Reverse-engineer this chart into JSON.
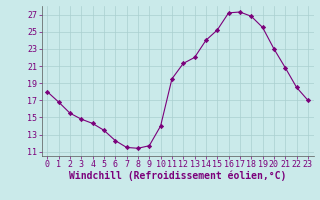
{
  "x": [
    0,
    1,
    2,
    3,
    4,
    5,
    6,
    7,
    8,
    9,
    10,
    11,
    12,
    13,
    14,
    15,
    16,
    17,
    18,
    19,
    20,
    21,
    22,
    23
  ],
  "y": [
    18.0,
    16.8,
    15.5,
    14.8,
    14.3,
    13.5,
    12.3,
    11.5,
    11.4,
    11.7,
    14.0,
    19.5,
    21.3,
    22.0,
    24.0,
    25.2,
    27.2,
    27.3,
    26.8,
    25.5,
    23.0,
    20.8,
    18.5,
    17.0
  ],
  "line_color": "#7b007b",
  "marker": "D",
  "marker_size": 2.2,
  "bg_color": "#caeaea",
  "grid_color": "#aacfcf",
  "xlabel": "Windchill (Refroidissement éolien,°C)",
  "xlabel_fontsize": 7,
  "ylim": [
    10.5,
    28
  ],
  "xlim": [
    -0.5,
    23.5
  ],
  "yticks": [
    11,
    13,
    15,
    17,
    19,
    21,
    23,
    25,
    27
  ],
  "xticks": [
    0,
    1,
    2,
    3,
    4,
    5,
    6,
    7,
    8,
    9,
    10,
    11,
    12,
    13,
    14,
    15,
    16,
    17,
    18,
    19,
    20,
    21,
    22,
    23
  ],
  "tick_fontsize": 6,
  "label_color": "#7b007b"
}
